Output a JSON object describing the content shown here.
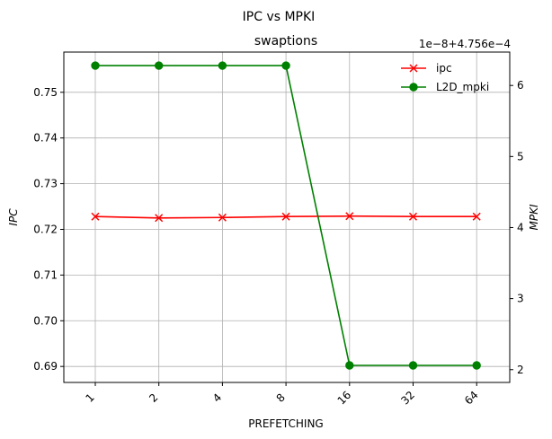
{
  "chart_data": {
    "type": "line",
    "suptitle": "IPC vs MPKI",
    "title": "swaptions",
    "xlabel": "PREFETCHING",
    "ylabel_left": "IPC",
    "ylabel_right": "MPKI",
    "right_offset_text": "1e−8+4.756e−4",
    "categories": [
      "1",
      "2",
      "4",
      "8",
      "16",
      "32",
      "64"
    ],
    "left_axis": {
      "ylim": [
        0.6865,
        0.7588
      ],
      "ticks": [
        0.69,
        0.7,
        0.71,
        0.72,
        0.73,
        0.74,
        0.75
      ],
      "tick_labels": [
        "0.69",
        "0.70",
        "0.71",
        "0.72",
        "0.73",
        "0.74",
        "0.75"
      ]
    },
    "right_axis": {
      "ylim": [
        1.82,
        6.47
      ],
      "ticks": [
        2,
        3,
        4,
        5,
        6
      ],
      "tick_labels": [
        "2",
        "3",
        "4",
        "5",
        "6"
      ]
    },
    "series": [
      {
        "name": "ipc",
        "axis": "left",
        "color": "#ff0000",
        "marker": "x",
        "values": [
          0.7228,
          0.7225,
          0.7226,
          0.7228,
          0.7229,
          0.7228,
          0.7228
        ]
      },
      {
        "name": "L2D_mpki",
        "axis": "right",
        "color": "#008000",
        "marker": "o",
        "values": [
          6.28,
          6.28,
          6.28,
          6.28,
          2.06,
          2.06,
          2.06
        ]
      }
    ],
    "grid": true,
    "legend_position": "top-right"
  }
}
